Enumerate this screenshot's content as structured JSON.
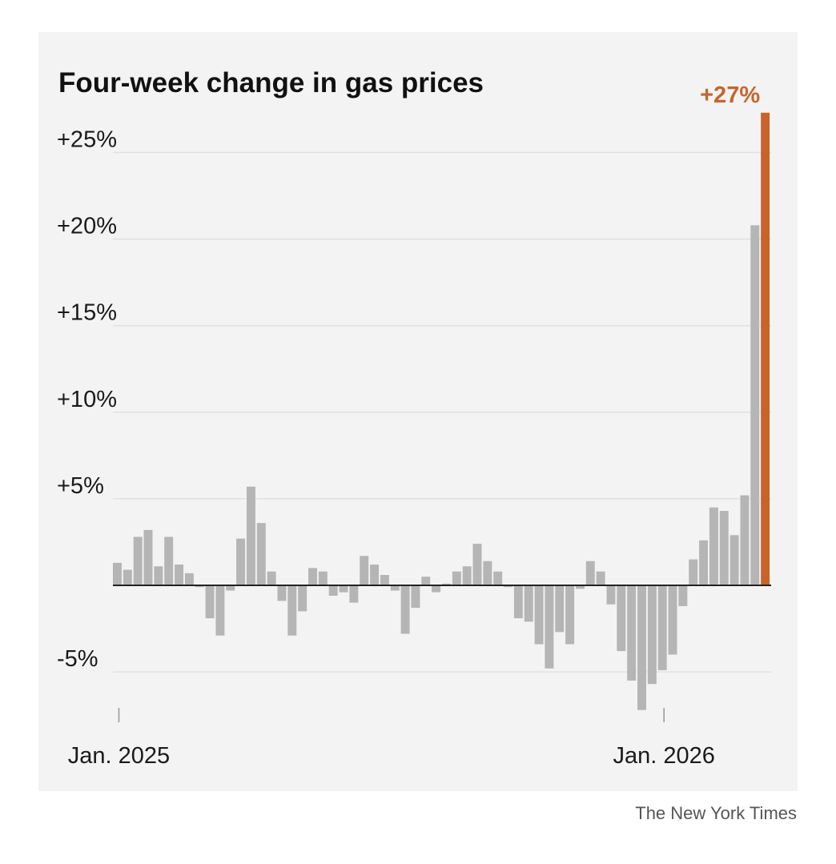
{
  "chart_data": {
    "type": "bar",
    "title": "Four-week change in gas prices",
    "xlabel": "",
    "ylabel": "",
    "ylim": [
      -7.5,
      27.5
    ],
    "yticks": [
      {
        "value": 25,
        "label": "+25%"
      },
      {
        "value": 20,
        "label": "+20%"
      },
      {
        "value": 15,
        "label": "+15%"
      },
      {
        "value": 10,
        "label": "+10%"
      },
      {
        "value": 5,
        "label": "+5%"
      },
      {
        "value": -5,
        "label": "-5%"
      }
    ],
    "xticks": [
      {
        "index": 0,
        "label": "Jan. 2025"
      },
      {
        "index": 53,
        "label": "Jan. 2026"
      }
    ],
    "grid": true,
    "highlight": {
      "index": 63,
      "label": "+27%",
      "color": "#c8642a"
    },
    "bar_color": "#b5b5b5",
    "values": [
      1.3,
      0.9,
      2.8,
      3.2,
      1.1,
      2.8,
      1.2,
      0.7,
      -0.1,
      -1.9,
      -2.9,
      -0.3,
      2.7,
      5.7,
      3.6,
      0.8,
      -0.9,
      -2.9,
      -1.5,
      1.0,
      0.8,
      -0.6,
      -0.4,
      -1.0,
      1.7,
      1.2,
      0.6,
      -0.3,
      -2.8,
      -1.3,
      0.5,
      -0.4,
      0.1,
      0.8,
      1.1,
      2.4,
      1.4,
      0.8,
      -0.1,
      -1.9,
      -2.1,
      -3.4,
      -4.8,
      -2.7,
      -3.4,
      -0.2,
      1.4,
      0.8,
      -1.1,
      -3.8,
      -5.5,
      -7.2,
      -5.7,
      -4.9,
      -4.0,
      -1.2,
      1.5,
      2.6,
      4.5,
      4.3,
      2.9,
      5.2,
      20.8,
      27.3
    ]
  },
  "footer": {
    "credit": "The New York Times"
  },
  "colors": {
    "panel_bg": "#f3f3f3",
    "grid": "#e1e1e1",
    "baseline": "#222222",
    "text": "#1a1a1a"
  }
}
